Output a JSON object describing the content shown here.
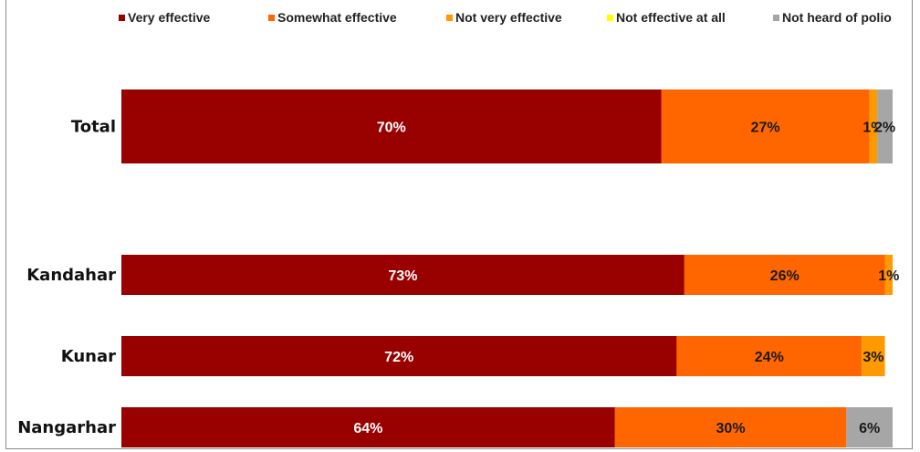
{
  "chart_data": {
    "type": "bar",
    "orientation": "horizontal",
    "stacked": true,
    "legend_position": "top",
    "grid": false,
    "xlim": [
      0,
      100
    ],
    "categories": [
      "Total",
      "Kandahar",
      "Kunar",
      "Nangarhar"
    ],
    "series": [
      {
        "name": "Very effective",
        "color": "#990000",
        "values": [
          70,
          73,
          72,
          64
        ],
        "labels": [
          "70%",
          "73%",
          "72%",
          "64%"
        ]
      },
      {
        "name": "Somewhat effective",
        "color": "#ff6600",
        "values": [
          27,
          26,
          24,
          30
        ],
        "labels": [
          "27%",
          "26%",
          "24%",
          "30%"
        ]
      },
      {
        "name": "Not very effective",
        "color": "#ff9900",
        "values": [
          1,
          1,
          3,
          0
        ],
        "labels": [
          "1%",
          "1%",
          "3%",
          ""
        ]
      },
      {
        "name": "Not effective at all",
        "color": "#ffff00",
        "values": [
          0,
          0,
          0,
          0
        ],
        "labels": [
          "",
          "",
          "",
          ""
        ]
      },
      {
        "name": "Not heard of polio",
        "color": "#a6a6a6",
        "values": [
          2,
          0,
          0,
          6
        ],
        "labels": [
          "2%",
          "",
          "",
          "6%"
        ]
      }
    ]
  }
}
